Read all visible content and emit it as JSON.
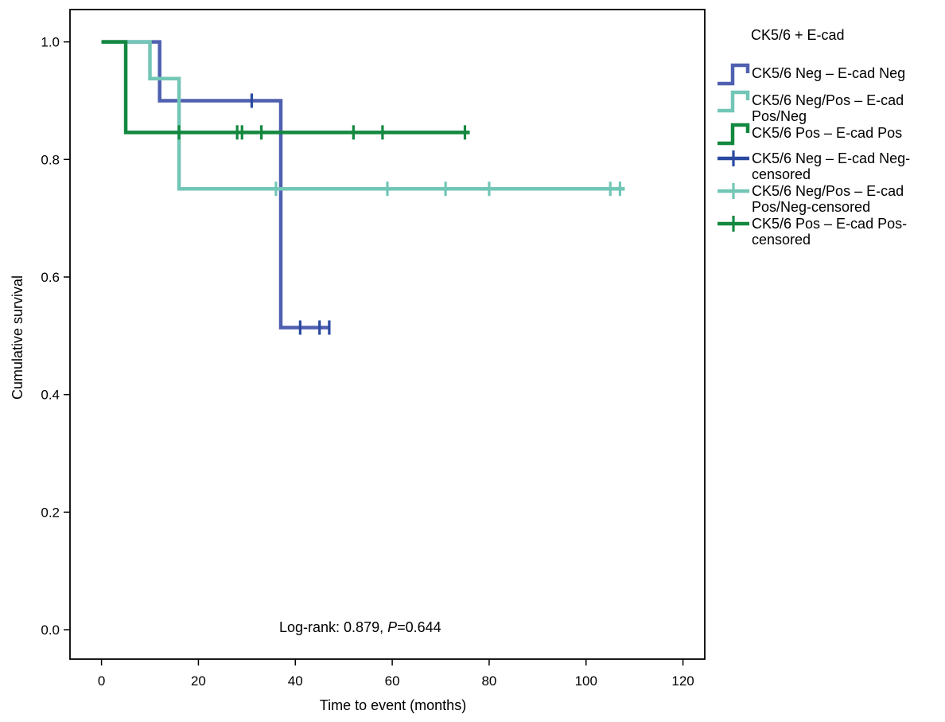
{
  "chart_data": {
    "type": "line",
    "subtype": "kaplan-meier",
    "xlabel": "Time to event (months)",
    "ylabel": "Cumulative survival",
    "xlim": [
      -6.5,
      124.5
    ],
    "ylim": [
      -0.05,
      1.055
    ],
    "xticks": [
      0,
      20,
      40,
      60,
      80,
      100,
      120
    ],
    "yticks": [
      0.0,
      0.2,
      0.4,
      0.6,
      0.8,
      1.0
    ],
    "xtick_labels": [
      "0",
      "20",
      "40",
      "60",
      "80",
      "100",
      "120"
    ],
    "ytick_labels": [
      "0.0",
      "0.2",
      "0.4",
      "0.6",
      "0.8",
      "1.0"
    ],
    "grid": false,
    "legend": {
      "title": "CK5/6 + E-cad",
      "position": "right",
      "entries": [
        {
          "lines": [
            "CK5/6 Neg – E-cad Neg"
          ],
          "marker": "step",
          "color": "#5060b0"
        },
        {
          "lines": [
            "CK5/6 Neg/Pos – E-cad",
            "Pos/Neg"
          ],
          "marker": "step",
          "color": "#72c6b6"
        },
        {
          "lines": [
            "CK5/6 Pos – E-cad Pos"
          ],
          "marker": "step",
          "color": "#13883f"
        },
        {
          "lines": [
            "CK5/6 Neg – E-cad Neg-",
            "censored"
          ],
          "marker": "plus",
          "color": "#2a4aa0"
        },
        {
          "lines": [
            "CK5/6 Neg/Pos – E-cad",
            "Pos/Neg-censored"
          ],
          "marker": "plus",
          "color": "#72c6b6"
        },
        {
          "lines": [
            "CK5/6 Pos – E-cad Pos-",
            "censored"
          ],
          "marker": "plus",
          "color": "#13883f"
        }
      ]
    },
    "annotation": {
      "prefix": "Log-rank: 0.879, ",
      "p_italic": "P",
      "suffix": "=0.644"
    },
    "series": [
      {
        "name": "CK5/6 Neg – E-cad Neg",
        "color": "#5060b0",
        "censor_color": "#2a4aa0",
        "steps": [
          [
            0,
            1.0
          ],
          [
            12,
            0.9
          ],
          [
            37,
            0.514
          ]
        ],
        "end_x": 47,
        "censored": [
          [
            31,
            0.9
          ],
          [
            41,
            0.514
          ],
          [
            45,
            0.514
          ],
          [
            47,
            0.514
          ]
        ]
      },
      {
        "name": "CK5/6 Neg/Pos – E-cad Pos/Neg",
        "color": "#72c6b6",
        "censor_color": "#72c6b6",
        "steps": [
          [
            0,
            1.0
          ],
          [
            10,
            0.9375
          ],
          [
            16,
            0.75
          ]
        ],
        "end_x": 108,
        "censored": [
          [
            36,
            0.75
          ],
          [
            59,
            0.75
          ],
          [
            71,
            0.75
          ],
          [
            80,
            0.75
          ],
          [
            105,
            0.75
          ],
          [
            107,
            0.75
          ]
        ]
      },
      {
        "name": "CK5/6 Pos – E-cad Pos",
        "color": "#13883f",
        "censor_color": "#13883f",
        "steps": [
          [
            0,
            1.0
          ],
          [
            5,
            0.846
          ]
        ],
        "end_x": 76,
        "censored": [
          [
            16,
            0.846
          ],
          [
            28,
            0.846
          ],
          [
            29,
            0.846
          ],
          [
            33,
            0.846
          ],
          [
            52,
            0.846
          ],
          [
            58,
            0.846
          ],
          [
            75,
            0.846
          ]
        ]
      }
    ]
  }
}
